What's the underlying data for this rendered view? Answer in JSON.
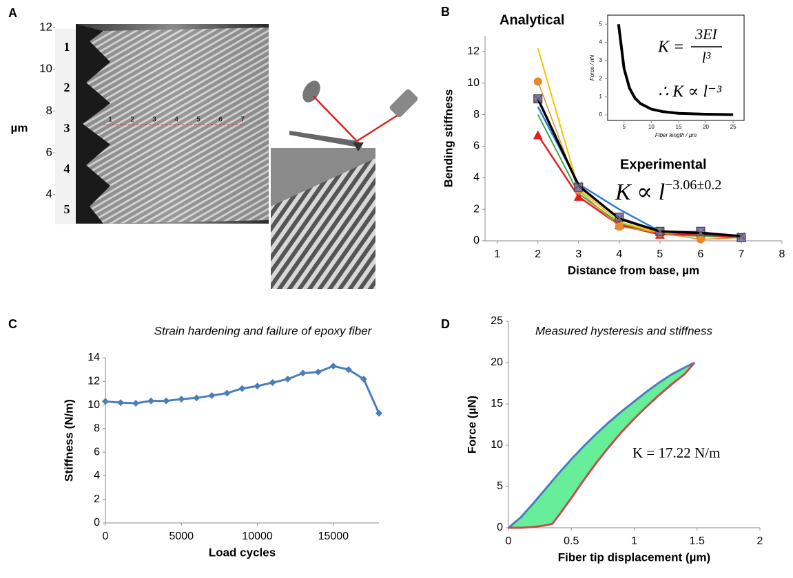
{
  "chart_data": [
    {
      "type": "image",
      "panel_label": "A",
      "ylabel": "µm",
      "ylim": [
        3,
        12
      ],
      "yticks": [
        4,
        6,
        8,
        10,
        12
      ],
      "row_labels": [
        "1",
        "2",
        "3",
        "4",
        "5"
      ],
      "row_label_colors": [
        "#1f6fc0",
        "#2a9a3a",
        "#e0a000",
        "#d02020",
        "#111111"
      ],
      "point_labels": [
        "1",
        "2",
        "3",
        "4",
        "5",
        "6",
        "7"
      ]
    },
    {
      "type": "line",
      "panel_label": "B",
      "xlabel": "Distance from base, µm",
      "ylabel": "Bending stiffness",
      "xlim": [
        0.7,
        8
      ],
      "xticks": [
        1,
        2,
        3,
        4,
        5,
        6,
        7,
        8
      ],
      "ylim": [
        0,
        13
      ],
      "yticks": [
        0,
        2,
        4,
        6,
        8,
        10,
        12
      ],
      "x": [
        2,
        3,
        4,
        5,
        6,
        7
      ],
      "series": [
        {
          "color": "#f5c400",
          "marker": "none",
          "width": 2,
          "values": [
            12.2,
            3.3,
            1.2,
            0.5,
            0.3,
            0.2
          ]
        },
        {
          "color": "#2b7bd8",
          "marker": "none",
          "width": 2.5,
          "values": [
            8.5,
            3.6,
            2.0,
            0.6,
            0.4,
            0.3
          ]
        },
        {
          "color": "#3aa845",
          "marker": "none",
          "width": 2,
          "values": [
            8.0,
            3.0,
            1.1,
            0.4,
            0.3,
            0.2
          ]
        },
        {
          "color": "#e02020",
          "marker": "triangle",
          "width": 2.5,
          "values": [
            6.7,
            2.8,
            1.0,
            0.4,
            0.4,
            0.2
          ]
        },
        {
          "color": "#e68a2e",
          "marker": "circle",
          "width": 1.5,
          "values": [
            10.1,
            3.2,
            0.9,
            0.5,
            0.1,
            0.2
          ]
        },
        {
          "color": "#8a7ab8",
          "marker": "square",
          "width": 1.5,
          "values": [
            9.0,
            3.4,
            1.5,
            0.6,
            0.6,
            0.2
          ]
        },
        {
          "color": "#000000",
          "marker": "x",
          "width": 3.5,
          "values": [
            9.0,
            3.5,
            1.4,
            0.6,
            0.5,
            0.3
          ]
        }
      ],
      "annotations": {
        "analytical": "Analytical",
        "experimental": "Experimental",
        "law": "K ∝ l",
        "law_exponent": "−3.06±0.2"
      }
    },
    {
      "type": "line",
      "xlabel": "Fiber length / µm",
      "ylabel": "Force / nN",
      "xlim": [
        2,
        27
      ],
      "xticks": [
        5,
        10,
        15,
        20,
        25
      ],
      "ylim": [
        -0.3,
        5.5
      ],
      "yticks": [
        0,
        1,
        2,
        3,
        4,
        5
      ],
      "frame": true,
      "x": [
        4,
        5,
        6,
        7,
        8,
        10,
        12,
        15,
        20,
        25
      ],
      "series": [
        {
          "color": "#000000",
          "marker": "none",
          "width": 4,
          "values": [
            5.0,
            2.56,
            1.48,
            0.93,
            0.63,
            0.32,
            0.19,
            0.09,
            0.04,
            0.02
          ]
        }
      ],
      "equation": {
        "lhs": "K =",
        "numerator": "3EI",
        "denominator": "l³",
        "proportional": "∴ K ∝ l⁻³"
      }
    },
    {
      "type": "line",
      "panel_label": "C",
      "title": "Strain hardening and failure of epoxy fiber",
      "xlabel": "Load cycles",
      "ylabel": "Stiffness (N/m)",
      "xlim": [
        0,
        18000
      ],
      "xticks": [
        0,
        5000,
        10000,
        15000
      ],
      "ylim": [
        0,
        14
      ],
      "yticks": [
        0,
        2,
        4,
        6,
        8,
        10,
        12,
        14
      ],
      "x": [
        0,
        1000,
        2000,
        3000,
        4000,
        5000,
        6000,
        7000,
        8000,
        9000,
        10000,
        11000,
        12000,
        13000,
        14000,
        15000,
        16000,
        17000,
        18000
      ],
      "series": [
        {
          "color": "#4a7ebb",
          "marker": "diamond",
          "width": 3,
          "values": [
            10.3,
            10.2,
            10.15,
            10.35,
            10.35,
            10.5,
            10.6,
            10.8,
            11.0,
            11.4,
            11.6,
            11.9,
            12.2,
            12.7,
            12.8,
            13.3,
            13.0,
            12.2,
            9.3
          ]
        }
      ]
    },
    {
      "type": "area",
      "panel_label": "D",
      "title": "Measured hysteresis and stiffness",
      "xlabel": "Fiber tip displacement (µm)",
      "ylabel": "Force (µN)",
      "xlim": [
        0,
        2
      ],
      "xticks": [
        0,
        0.5,
        1,
        1.5,
        2
      ],
      "ylim": [
        0,
        25
      ],
      "yticks": [
        0,
        5,
        10,
        15,
        20,
        25
      ],
      "fill": "#66ee99",
      "series": [
        {
          "color": "#4a7ebb",
          "x": [
            0,
            0.1,
            0.2,
            0.3,
            0.4,
            0.5,
            0.6,
            0.7,
            0.8,
            0.9,
            1.0,
            1.1,
            1.2,
            1.3,
            1.4,
            1.48
          ],
          "values": [
            0,
            1.3,
            3,
            4.8,
            6.6,
            8.3,
            9.9,
            11.4,
            12.8,
            14.1,
            15.3,
            16.5,
            17.6,
            18.6,
            19.4,
            20
          ]
        },
        {
          "color": "#c0504d",
          "x": [
            0,
            0.1,
            0.2,
            0.3,
            0.35,
            0.4,
            0.5,
            0.6,
            0.7,
            0.8,
            0.9,
            1.0,
            1.1,
            1.2,
            1.3,
            1.4,
            1.48
          ],
          "values": [
            0,
            0,
            0.1,
            0.3,
            0.5,
            1.5,
            3.6,
            5.8,
            7.9,
            9.8,
            11.6,
            13.2,
            14.7,
            16.1,
            17.4,
            18.6,
            20
          ]
        }
      ],
      "annotation": "K = 17.22 N/m"
    }
  ]
}
